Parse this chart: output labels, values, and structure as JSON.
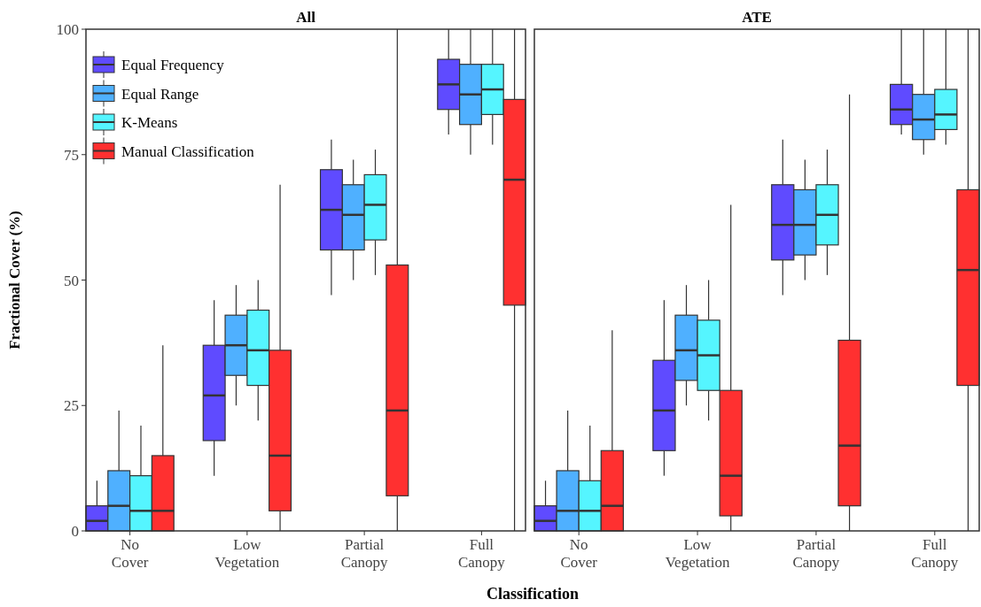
{
  "chart_data": [
    {
      "type": "box",
      "title": "All",
      "xlabel": "Classification",
      "ylabel": "Fractional Cover (%)",
      "categories": [
        "No Cover",
        "Low Vegetation",
        "Partial Canopy",
        "Full Canopy"
      ],
      "ylim": [
        0,
        100
      ],
      "yticks": [
        0,
        25,
        50,
        75,
        100
      ],
      "legend": "top left",
      "grid": false,
      "series": [
        {
          "name": "Equal Frequency",
          "color": "#5f4bff",
          "boxes": [
            {
              "low": 0,
              "q1": 0,
              "median": 2,
              "q3": 5,
              "high": 10
            },
            {
              "low": 11,
              "q1": 18,
              "median": 27,
              "q3": 37,
              "high": 46
            },
            {
              "low": 47,
              "q1": 56,
              "median": 64,
              "q3": 72,
              "high": 78
            },
            {
              "low": 79,
              "q1": 84,
              "median": 89,
              "q3": 94,
              "high": 100
            }
          ]
        },
        {
          "name": "Equal Range",
          "color": "#4fb0ff",
          "boxes": [
            {
              "low": 0,
              "q1": 0,
              "median": 5,
              "q3": 12,
              "high": 24
            },
            {
              "low": 25,
              "q1": 31,
              "median": 37,
              "q3": 43,
              "high": 49
            },
            {
              "low": 50,
              "q1": 56,
              "median": 63,
              "q3": 69,
              "high": 74
            },
            {
              "low": 75,
              "q1": 81,
              "median": 87,
              "q3": 93,
              "high": 100
            }
          ]
        },
        {
          "name": "K-Means",
          "color": "#55f5ff",
          "boxes": [
            {
              "low": 0,
              "q1": 0,
              "median": 4,
              "q3": 11,
              "high": 21
            },
            {
              "low": 22,
              "q1": 29,
              "median": 36,
              "q3": 44,
              "high": 50
            },
            {
              "low": 51,
              "q1": 58,
              "median": 65,
              "q3": 71,
              "high": 76
            },
            {
              "low": 77,
              "q1": 83,
              "median": 88,
              "q3": 93,
              "high": 100
            }
          ]
        },
        {
          "name": "Manual Classification",
          "color": "#ff3030",
          "boxes": [
            {
              "low": 0,
              "q1": 0,
              "median": 4,
              "q3": 15,
              "high": 37
            },
            {
              "low": 0,
              "q1": 4,
              "median": 15,
              "q3": 36,
              "high": 69
            },
            {
              "low": 0,
              "q1": 7,
              "median": 24,
              "q3": 53,
              "high": 100
            },
            {
              "low": 0,
              "q1": 45,
              "median": 70,
              "q3": 86,
              "high": 100
            }
          ]
        }
      ]
    },
    {
      "type": "box",
      "title": "ATE",
      "categories": [
        "No Cover",
        "Low Vegetation",
        "Partial Canopy",
        "Full Canopy"
      ],
      "ylim": [
        0,
        100
      ],
      "tick_labels": "x",
      "grid": false,
      "series": [
        {
          "color": "#5f4bff",
          "boxes": [
            {
              "low": 0,
              "q1": 0,
              "median": 2,
              "q3": 5,
              "high": 10
            },
            {
              "low": 11,
              "q1": 16,
              "median": 24,
              "q3": 34,
              "high": 46
            },
            {
              "low": 47,
              "q1": 54,
              "median": 61,
              "q3": 69,
              "high": 78
            },
            {
              "low": 79,
              "q1": 81,
              "median": 84,
              "q3": 89,
              "high": 100
            }
          ]
        },
        {
          "color": "#4fb0ff",
          "boxes": [
            {
              "low": 0,
              "q1": 0,
              "median": 4,
              "q3": 12,
              "high": 24
            },
            {
              "low": 25,
              "q1": 30,
              "median": 36,
              "q3": 43,
              "high": 49
            },
            {
              "low": 50,
              "q1": 55,
              "median": 61,
              "q3": 68,
              "high": 74
            },
            {
              "low": 75,
              "q1": 78,
              "median": 82,
              "q3": 87,
              "high": 100
            }
          ]
        },
        {
          "color": "#55f5ff",
          "boxes": [
            {
              "low": 0,
              "q1": 0,
              "median": 4,
              "q3": 10,
              "high": 21
            },
            {
              "low": 22,
              "q1": 28,
              "median": 35,
              "q3": 42,
              "high": 50
            },
            {
              "low": 51,
              "q1": 57,
              "median": 63,
              "q3": 69,
              "high": 76
            },
            {
              "low": 77,
              "q1": 80,
              "median": 83,
              "q3": 88,
              "high": 100
            }
          ]
        },
        {
          "color": "#ff3030",
          "boxes": [
            {
              "low": 0,
              "q1": 0,
              "median": 5,
              "q3": 16,
              "high": 40
            },
            {
              "low": 0,
              "q1": 3,
              "median": 11,
              "q3": 28,
              "high": 65
            },
            {
              "low": 0,
              "q1": 5,
              "median": 17,
              "q3": 38,
              "high": 87
            },
            {
              "low": 0,
              "q1": 29,
              "median": 52,
              "q3": 68,
              "high": 100
            }
          ]
        }
      ]
    }
  ]
}
